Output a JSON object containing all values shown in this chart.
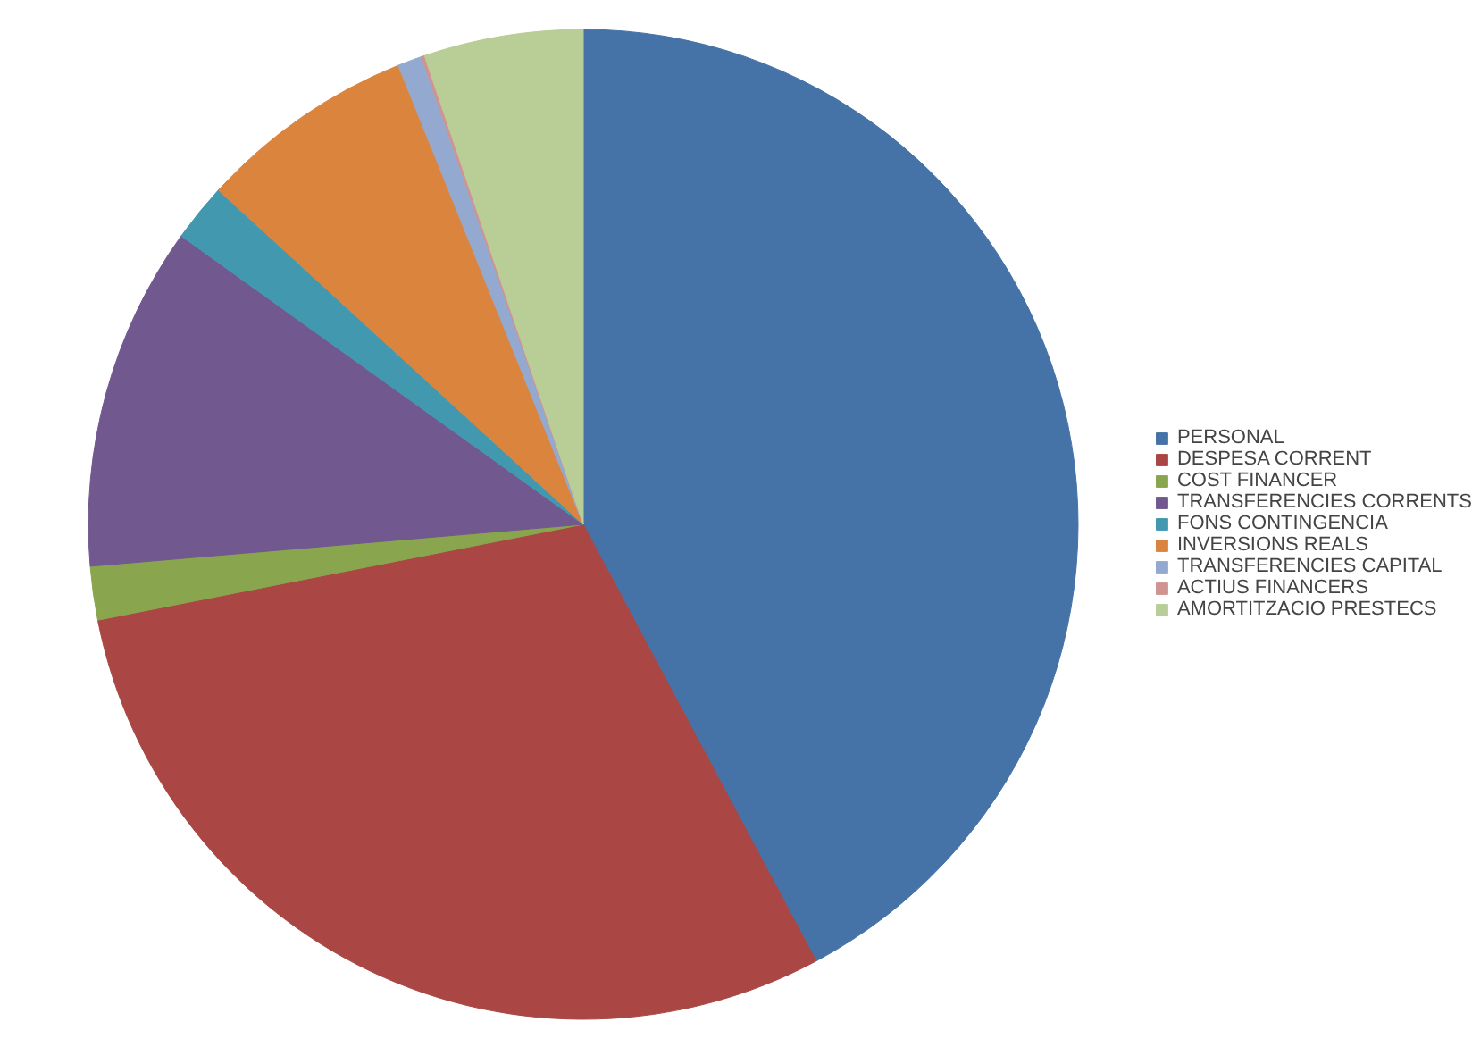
{
  "chart_data": {
    "type": "pie",
    "categories": [
      "PERSONAL",
      "DESPESA CORRENT",
      "COST FINANCER",
      "TRANSFERENCIES CORRENTS",
      "FONS CONTINGENCIA",
      "INVERSIONS REALS",
      "TRANSFERENCIES CAPITAL",
      "ACTIUS FINANCERS",
      "AMORTITZACIO PRESTECS"
    ],
    "values": [
      42.2,
      29.7,
      1.75,
      11.25,
      1.9,
      7.1,
      0.8,
      0.1,
      5.2
    ],
    "colors": [
      "#4572a7",
      "#aa4643",
      "#89a54e",
      "#71588f",
      "#4198af",
      "#db843d",
      "#93a9cf",
      "#d19392",
      "#b9cd96"
    ],
    "legend": "right"
  }
}
